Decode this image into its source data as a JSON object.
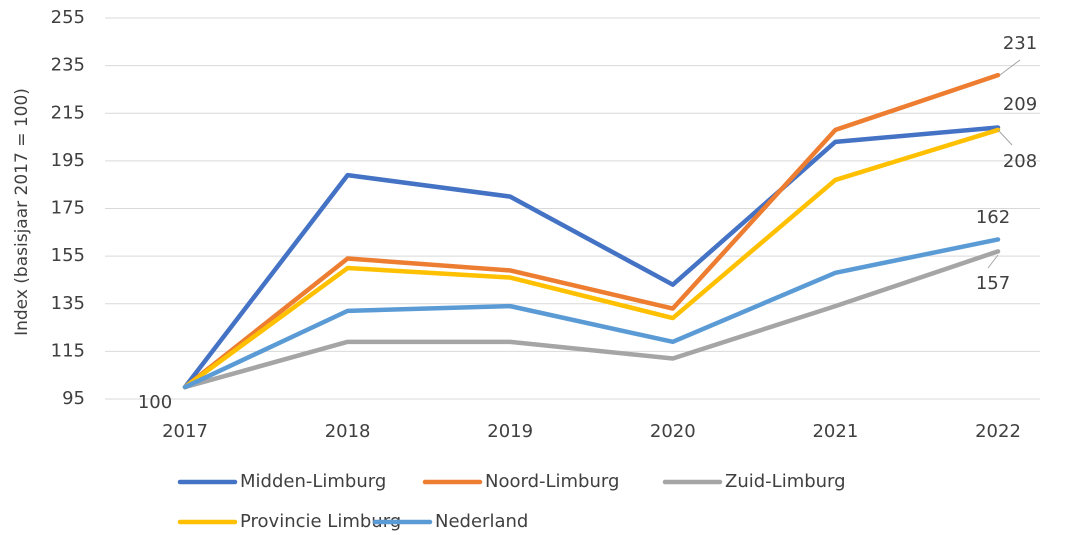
{
  "chart_data": {
    "type": "line",
    "y_label": "Index (basisjaar 2017 = 100)",
    "categories": [
      "2017",
      "2018",
      "2019",
      "2020",
      "2021",
      "2022"
    ],
    "series": [
      {
        "name": "Midden-Limburg",
        "color": "#4472c4",
        "values": [
          100,
          189,
          180,
          143,
          203,
          209
        ]
      },
      {
        "name": "Noord-Limburg",
        "color": "#ed7d31",
        "values": [
          100,
          154,
          149,
          133,
          208,
          231
        ]
      },
      {
        "name": "Zuid-Limburg",
        "color": "#a5a5a5",
        "values": [
          100,
          119,
          119,
          112,
          134,
          157
        ]
      },
      {
        "name": "Provincie Limburg",
        "color": "#ffc000",
        "values": [
          100,
          150,
          146,
          129,
          187,
          208
        ]
      },
      {
        "name": "Nederland",
        "color": "#5b9bd5",
        "values": [
          100,
          132,
          134,
          119,
          148,
          162
        ]
      }
    ],
    "ylim": [
      95,
      255
    ],
    "yticks": [
      95,
      115,
      135,
      155,
      175,
      195,
      215,
      235,
      255
    ],
    "grid": true,
    "legend": "bottom"
  }
}
